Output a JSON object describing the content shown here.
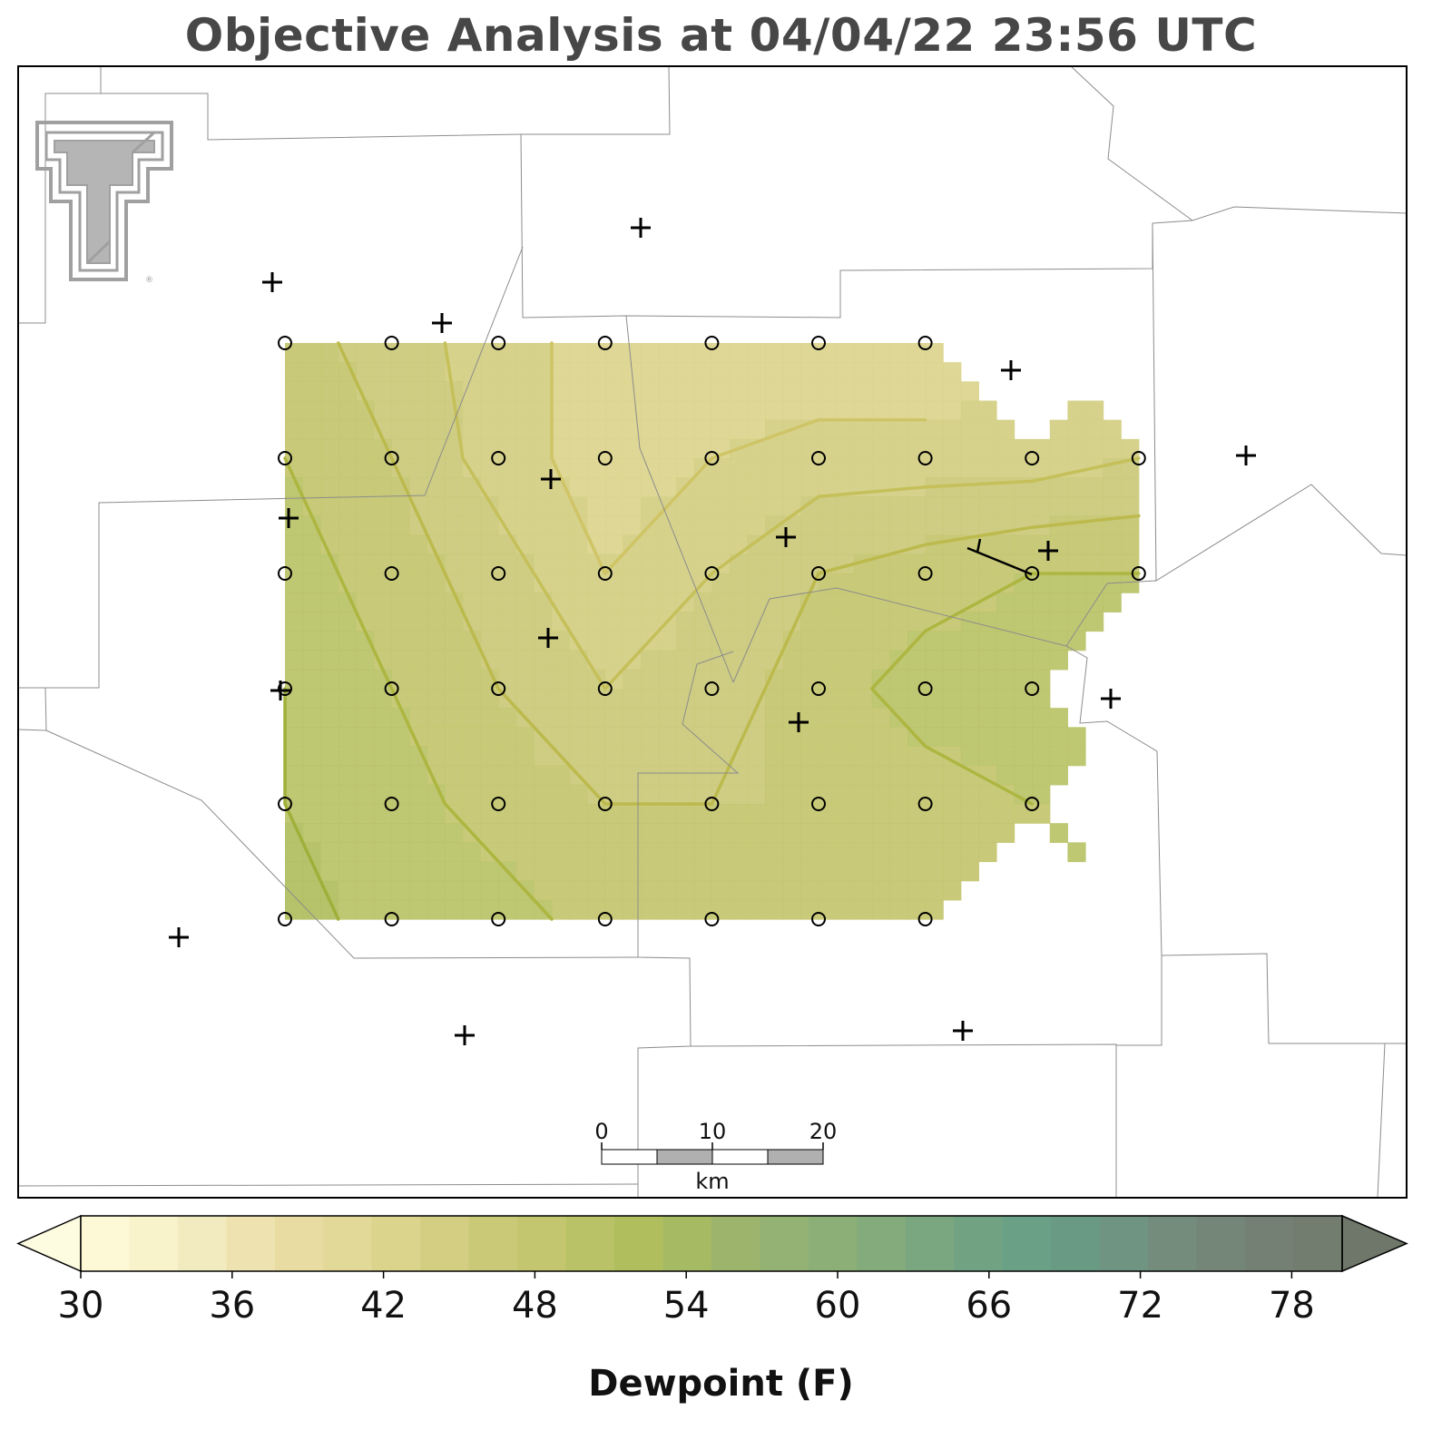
{
  "title": "Objective Analysis at 04/04/22 23:56 UTC",
  "colorbar": {
    "label": "Dewpoint (F)",
    "min": 30,
    "max": 80,
    "step": 2,
    "ticks": [
      "30",
      "36",
      "42",
      "48",
      "54",
      "60",
      "66",
      "72",
      "78"
    ],
    "colors": [
      "#fdf9d6",
      "#f9f3cc",
      "#f3ebc0",
      "#ede2b0",
      "#e8dca2",
      "#e2d897",
      "#dbd48c",
      "#d3ce82",
      "#cac978",
      "#c3c66e",
      "#b9c266",
      "#b0be5e",
      "#a6b963",
      "#9db46c",
      "#94b273",
      "#8caf77",
      "#83ab7b",
      "#7aa77f",
      "#71a383",
      "#6aa086",
      "#699b84",
      "#6f9481",
      "#738c7c",
      "#748677",
      "#738073",
      "#727c6f"
    ],
    "extend": "both",
    "under_color": "#fdfbe0",
    "over_color": "#6f776a"
  },
  "scale_bar": {
    "ticks": [
      "0",
      "10",
      "20"
    ],
    "unit": "km"
  },
  "logo": {
    "name": "texas-tech-double-t-logo",
    "registered_mark": "®"
  },
  "analysis": {
    "grid_rows": 6,
    "grid_cols": 9,
    "field": [
      [
        49,
        47,
        45,
        43,
        43,
        42,
        42,
        null,
        null
      ],
      [
        50,
        48,
        45,
        43,
        44,
        45,
        45,
        45,
        46
      ],
      [
        51,
        49,
        47,
        44,
        46,
        48,
        49,
        50,
        50
      ],
      [
        52,
        50,
        48,
        46,
        47,
        49,
        51,
        51,
        null
      ],
      [
        52,
        51,
        49,
        48,
        48,
        48,
        49,
        50,
        null
      ],
      [
        53,
        51,
        51,
        49,
        48,
        49,
        49,
        null,
        null
      ]
    ],
    "contour_colors": {
      "40": "#d8cd7c",
      "42": "#d5c96f",
      "44": "#cfc466",
      "46": "#c5c05a",
      "48": "#bcba4d",
      "50": "#adb640",
      "52": "#9fb03a"
    },
    "wind_barb": {
      "direction_from": "NW",
      "speed_kt": 5
    }
  }
}
